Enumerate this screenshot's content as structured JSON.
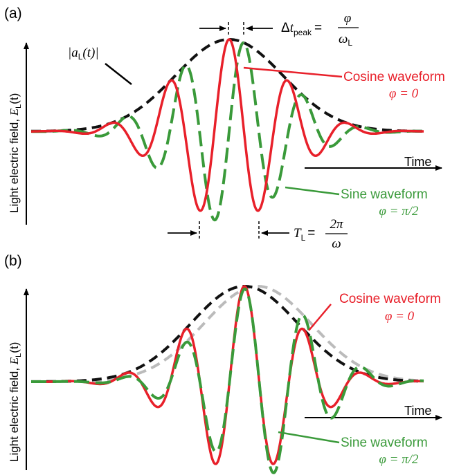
{
  "colors": {
    "cosine": "#e8202a",
    "sine": "#3a9a3a",
    "envelope": "#111111",
    "envelope_shifted": "#bbbbbb",
    "axis": "#000000"
  },
  "panel_a": {
    "label": "(a)",
    "ylabel_prefix": "Light electric field, ",
    "ylabel_var": "E",
    "ylabel_sub": "L",
    "ylabel_suffix": "(t)",
    "xlabel": "Time",
    "envelope_label_var": "|a",
    "envelope_label_sub": "L",
    "envelope_label_suffix": "(t)|",
    "delta_t": {
      "delta": "Δ",
      "var": "t",
      "sub": "peak",
      "eq": "=",
      "num": "φ",
      "den": "ω",
      "den_sub": "L"
    },
    "period": {
      "var": "T",
      "sub": "L",
      "eq": "=",
      "num": "2π",
      "den": "ω"
    },
    "cosine": {
      "name": "Cosine waveform",
      "phase": "φ = 0"
    },
    "sine": {
      "name": "Sine waveform",
      "phase": "φ = π/2"
    }
  },
  "panel_b": {
    "label": "(b)",
    "ylabel_prefix": "Light electric field, ",
    "ylabel_var": "E",
    "ylabel_sub": "L",
    "ylabel_suffix": "(t)",
    "xlabel": "Time",
    "cosine": {
      "name": "Cosine waveform",
      "phase": "φ = 0"
    },
    "sine": {
      "name": "Sine waveform",
      "phase": "φ = π/2"
    }
  },
  "icons": [
    "arrow-icon"
  ]
}
